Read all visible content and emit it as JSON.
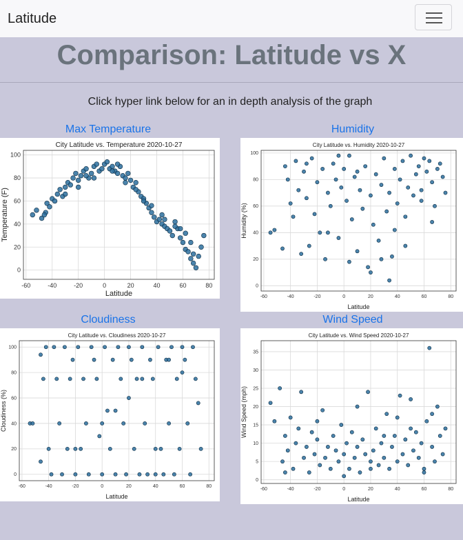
{
  "navbar": {
    "brand": "Latitude",
    "menu_icon": "hamburger-menu-icon"
  },
  "header": {
    "title": "Comparison: Latitude vs X",
    "subtitle": "Click hyper link below for an in depth analysis of the graph"
  },
  "links": {
    "max_temp": "Max Temperature",
    "humidity": "Humidity",
    "cloudiness": "Cloudiness",
    "wind_speed": "Wind Speed"
  },
  "colors": {
    "marker": "#2b6e9e",
    "marker_edge": "#0b2a40",
    "link": "#1a73e8",
    "background": "#c9c8db"
  },
  "chart_data": [
    {
      "type": "scatter",
      "title": "City Latitude vs. Temperature 2020-10-27",
      "xlabel": "Latitude",
      "ylabel": "Temperature (F)",
      "xlim": [
        -62,
        84
      ],
      "ylim": [
        -8,
        104
      ],
      "xticks": [
        -60,
        -40,
        -20,
        0,
        20,
        40,
        60,
        80
      ],
      "yticks": [
        0,
        20,
        40,
        60,
        80,
        100
      ],
      "grid": true,
      "points": [
        [
          -55,
          48
        ],
        [
          -52,
          52
        ],
        [
          -48,
          45
        ],
        [
          -45,
          50
        ],
        [
          -44,
          58
        ],
        [
          -42,
          55
        ],
        [
          -40,
          62
        ],
        [
          -38,
          60
        ],
        [
          -36,
          66
        ],
        [
          -34,
          70
        ],
        [
          -32,
          64
        ],
        [
          -30,
          72
        ],
        [
          -28,
          76
        ],
        [
          -26,
          74
        ],
        [
          -24,
          80
        ],
        [
          -22,
          84
        ],
        [
          -20,
          78
        ],
        [
          -18,
          82
        ],
        [
          -16,
          86
        ],
        [
          -14,
          88
        ],
        [
          -12,
          80
        ],
        [
          -10,
          84
        ],
        [
          -8,
          90
        ],
        [
          -6,
          92
        ],
        [
          -4,
          86
        ],
        [
          -2,
          88
        ],
        [
          0,
          92
        ],
        [
          2,
          94
        ],
        [
          4,
          88
        ],
        [
          6,
          90
        ],
        [
          8,
          86
        ],
        [
          10,
          84
        ],
        [
          12,
          90
        ],
        [
          14,
          82
        ],
        [
          16,
          80
        ],
        [
          18,
          84
        ],
        [
          20,
          78
        ],
        [
          22,
          72
        ],
        [
          24,
          76
        ],
        [
          26,
          68
        ],
        [
          28,
          64
        ],
        [
          30,
          62
        ],
        [
          32,
          58
        ],
        [
          34,
          54
        ],
        [
          36,
          50
        ],
        [
          38,
          46
        ],
        [
          40,
          42
        ],
        [
          42,
          44
        ],
        [
          44,
          40
        ],
        [
          46,
          38
        ],
        [
          48,
          36
        ],
        [
          50,
          34
        ],
        [
          52,
          30
        ],
        [
          54,
          42
        ],
        [
          56,
          36
        ],
        [
          58,
          28
        ],
        [
          60,
          24
        ],
        [
          62,
          18
        ],
        [
          64,
          16
        ],
        [
          66,
          10
        ],
        [
          68,
          6
        ],
        [
          70,
          2
        ],
        [
          72,
          12
        ],
        [
          74,
          20
        ],
        [
          76,
          30
        ],
        [
          -46,
          48
        ],
        [
          -30,
          66
        ],
        [
          -14,
          82
        ],
        [
          6,
          86
        ],
        [
          24,
          70
        ],
        [
          36,
          56
        ],
        [
          46,
          44
        ],
        [
          58,
          36
        ],
        [
          66,
          24
        ],
        [
          10,
          92
        ],
        [
          -20,
          72
        ],
        [
          -8,
          80
        ],
        [
          16,
          76
        ],
        [
          30,
          60
        ],
        [
          44,
          48
        ],
        [
          54,
          38
        ],
        [
          62,
          32
        ],
        [
          68,
          14
        ]
      ]
    },
    {
      "type": "scatter",
      "title": "City Latitude vs. Humidity 2020-10-27",
      "xlabel": "Latitude",
      "ylabel": "Humidity (%)",
      "xlim": [
        -62,
        84
      ],
      "ylim": [
        -4,
        102
      ],
      "xticks": [
        -60,
        -40,
        -20,
        0,
        20,
        40,
        60,
        80
      ],
      "yticks": [
        0,
        20,
        40,
        60,
        80,
        100
      ],
      "grid": true,
      "points": [
        [
          -55,
          40
        ],
        [
          -52,
          42
        ],
        [
          -46,
          28
        ],
        [
          -44,
          90
        ],
        [
          -42,
          80
        ],
        [
          -40,
          62
        ],
        [
          -38,
          52
        ],
        [
          -36,
          94
        ],
        [
          -34,
          72
        ],
        [
          -32,
          24
        ],
        [
          -30,
          86
        ],
        [
          -28,
          66
        ],
        [
          -26,
          30
        ],
        [
          -24,
          96
        ],
        [
          -22,
          54
        ],
        [
          -20,
          78
        ],
        [
          -18,
          40
        ],
        [
          -16,
          88
        ],
        [
          -14,
          20
        ],
        [
          -12,
          70
        ],
        [
          -10,
          60
        ],
        [
          -8,
          92
        ],
        [
          -6,
          80
        ],
        [
          -4,
          36
        ],
        [
          -2,
          74
        ],
        [
          0,
          88
        ],
        [
          2,
          64
        ],
        [
          4,
          98
        ],
        [
          6,
          50
        ],
        [
          8,
          82
        ],
        [
          10,
          26
        ],
        [
          12,
          72
        ],
        [
          14,
          58
        ],
        [
          16,
          90
        ],
        [
          18,
          14
        ],
        [
          20,
          68
        ],
        [
          22,
          46
        ],
        [
          24,
          84
        ],
        [
          26,
          34
        ],
        [
          28,
          76
        ],
        [
          30,
          96
        ],
        [
          32,
          56
        ],
        [
          34,
          70
        ],
        [
          36,
          22
        ],
        [
          38,
          88
        ],
        [
          40,
          62
        ],
        [
          42,
          80
        ],
        [
          44,
          94
        ],
        [
          46,
          52
        ],
        [
          48,
          74
        ],
        [
          50,
          98
        ],
        [
          52,
          68
        ],
        [
          54,
          84
        ],
        [
          56,
          90
        ],
        [
          58,
          72
        ],
        [
          60,
          96
        ],
        [
          62,
          86
        ],
        [
          64,
          94
        ],
        [
          66,
          78
        ],
        [
          68,
          60
        ],
        [
          70,
          88
        ],
        [
          72,
          92
        ],
        [
          74,
          82
        ],
        [
          76,
          70
        ],
        [
          -28,
          92
        ],
        [
          -12,
          40
        ],
        [
          4,
          18
        ],
        [
          20,
          10
        ],
        [
          34,
          4
        ],
        [
          46,
          30
        ],
        [
          58,
          64
        ],
        [
          66,
          48
        ],
        [
          10,
          86
        ],
        [
          -4,
          98
        ],
        [
          38,
          42
        ],
        [
          28,
          20
        ]
      ]
    },
    {
      "type": "scatter",
      "title": "City Latitude vs. Cloudiness 2020-10-27",
      "xlabel": "Latitude",
      "ylabel": "Cloudiness (%)",
      "xlim": [
        -62,
        84
      ],
      "ylim": [
        -5,
        105
      ],
      "xticks": [
        -60,
        -40,
        -20,
        0,
        20,
        40,
        60,
        80
      ],
      "yticks": [
        0,
        20,
        40,
        60,
        80,
        100
      ],
      "grid": true,
      "points": [
        [
          -54,
          40
        ],
        [
          -52,
          40
        ],
        [
          -46,
          94
        ],
        [
          -44,
          75
        ],
        [
          -42,
          100
        ],
        [
          -40,
          20
        ],
        [
          -38,
          0
        ],
        [
          -36,
          100
        ],
        [
          -34,
          75
        ],
        [
          -32,
          40
        ],
        [
          -30,
          0
        ],
        [
          -28,
          100
        ],
        [
          -26,
          20
        ],
        [
          -24,
          75
        ],
        [
          -22,
          90
        ],
        [
          -20,
          0
        ],
        [
          -18,
          100
        ],
        [
          -16,
          20
        ],
        [
          -14,
          75
        ],
        [
          -12,
          40
        ],
        [
          -10,
          0
        ],
        [
          -8,
          100
        ],
        [
          -6,
          90
        ],
        [
          -4,
          75
        ],
        [
          -2,
          30
        ],
        [
          0,
          0
        ],
        [
          2,
          100
        ],
        [
          4,
          50
        ],
        [
          6,
          20
        ],
        [
          8,
          90
        ],
        [
          10,
          0
        ],
        [
          12,
          100
        ],
        [
          14,
          75
        ],
        [
          16,
          40
        ],
        [
          18,
          0
        ],
        [
          20,
          100
        ],
        [
          22,
          90
        ],
        [
          24,
          20
        ],
        [
          26,
          75
        ],
        [
          28,
          0
        ],
        [
          30,
          100
        ],
        [
          32,
          40
        ],
        [
          34,
          0
        ],
        [
          36,
          90
        ],
        [
          38,
          75
        ],
        [
          40,
          0
        ],
        [
          42,
          100
        ],
        [
          44,
          20
        ],
        [
          46,
          0
        ],
        [
          48,
          90
        ],
        [
          50,
          40
        ],
        [
          52,
          100
        ],
        [
          54,
          0
        ],
        [
          56,
          75
        ],
        [
          58,
          20
        ],
        [
          60,
          100
        ],
        [
          62,
          90
        ],
        [
          64,
          40
        ],
        [
          66,
          0
        ],
        [
          68,
          100
        ],
        [
          70,
          75
        ],
        [
          72,
          56
        ],
        [
          74,
          20
        ],
        [
          -46,
          10
        ],
        [
          -20,
          20
        ],
        [
          0,
          40
        ],
        [
          20,
          60
        ],
        [
          40,
          20
        ],
        [
          60,
          80
        ],
        [
          10,
          50
        ],
        [
          30,
          75
        ],
        [
          50,
          90
        ]
      ]
    },
    {
      "type": "scatter",
      "title": "City Latitude vs. Wind Speed 2020-10-27",
      "xlabel": "Latitude",
      "ylabel": "Wind Speed (mph)",
      "xlim": [
        -62,
        84
      ],
      "ylim": [
        -1,
        38
      ],
      "xticks": [
        -60,
        -40,
        -20,
        0,
        20,
        40,
        60,
        80
      ],
      "yticks": [
        0,
        5,
        10,
        15,
        20,
        25,
        30,
        35
      ],
      "grid": true,
      "points": [
        [
          -55,
          21
        ],
        [
          -52,
          16
        ],
        [
          -48,
          25
        ],
        [
          -46,
          5
        ],
        [
          -44,
          12
        ],
        [
          -42,
          8
        ],
        [
          -40,
          17
        ],
        [
          -38,
          3
        ],
        [
          -36,
          10
        ],
        [
          -34,
          14
        ],
        [
          -32,
          24
        ],
        [
          -30,
          6
        ],
        [
          -28,
          9
        ],
        [
          -26,
          2
        ],
        [
          -24,
          13
        ],
        [
          -22,
          7
        ],
        [
          -20,
          11
        ],
        [
          -18,
          4
        ],
        [
          -16,
          19
        ],
        [
          -14,
          6
        ],
        [
          -12,
          9
        ],
        [
          -10,
          3
        ],
        [
          -8,
          12
        ],
        [
          -6,
          8
        ],
        [
          -4,
          5
        ],
        [
          -2,
          15
        ],
        [
          0,
          7
        ],
        [
          2,
          10
        ],
        [
          4,
          3
        ],
        [
          6,
          13
        ],
        [
          8,
          6
        ],
        [
          10,
          9
        ],
        [
          12,
          2
        ],
        [
          14,
          11
        ],
        [
          16,
          7
        ],
        [
          18,
          24
        ],
        [
          20,
          5
        ],
        [
          22,
          8
        ],
        [
          24,
          14
        ],
        [
          26,
          4
        ],
        [
          28,
          10
        ],
        [
          30,
          6
        ],
        [
          32,
          18
        ],
        [
          34,
          3
        ],
        [
          36,
          9
        ],
        [
          38,
          12
        ],
        [
          40,
          5
        ],
        [
          42,
          23
        ],
        [
          44,
          7
        ],
        [
          46,
          11
        ],
        [
          48,
          4
        ],
        [
          50,
          22
        ],
        [
          52,
          8
        ],
        [
          54,
          13
        ],
        [
          56,
          6
        ],
        [
          58,
          10
        ],
        [
          60,
          3
        ],
        [
          62,
          16
        ],
        [
          64,
          36
        ],
        [
          66,
          9
        ],
        [
          68,
          5
        ],
        [
          70,
          20
        ],
        [
          72,
          12
        ],
        [
          74,
          7
        ],
        [
          76,
          14
        ],
        [
          -44,
          2
        ],
        [
          -20,
          16
        ],
        [
          0,
          1
        ],
        [
          20,
          3
        ],
        [
          40,
          17
        ],
        [
          60,
          2
        ],
        [
          30,
          12
        ],
        [
          10,
          20
        ],
        [
          50,
          14
        ],
        [
          66,
          18
        ]
      ]
    }
  ]
}
